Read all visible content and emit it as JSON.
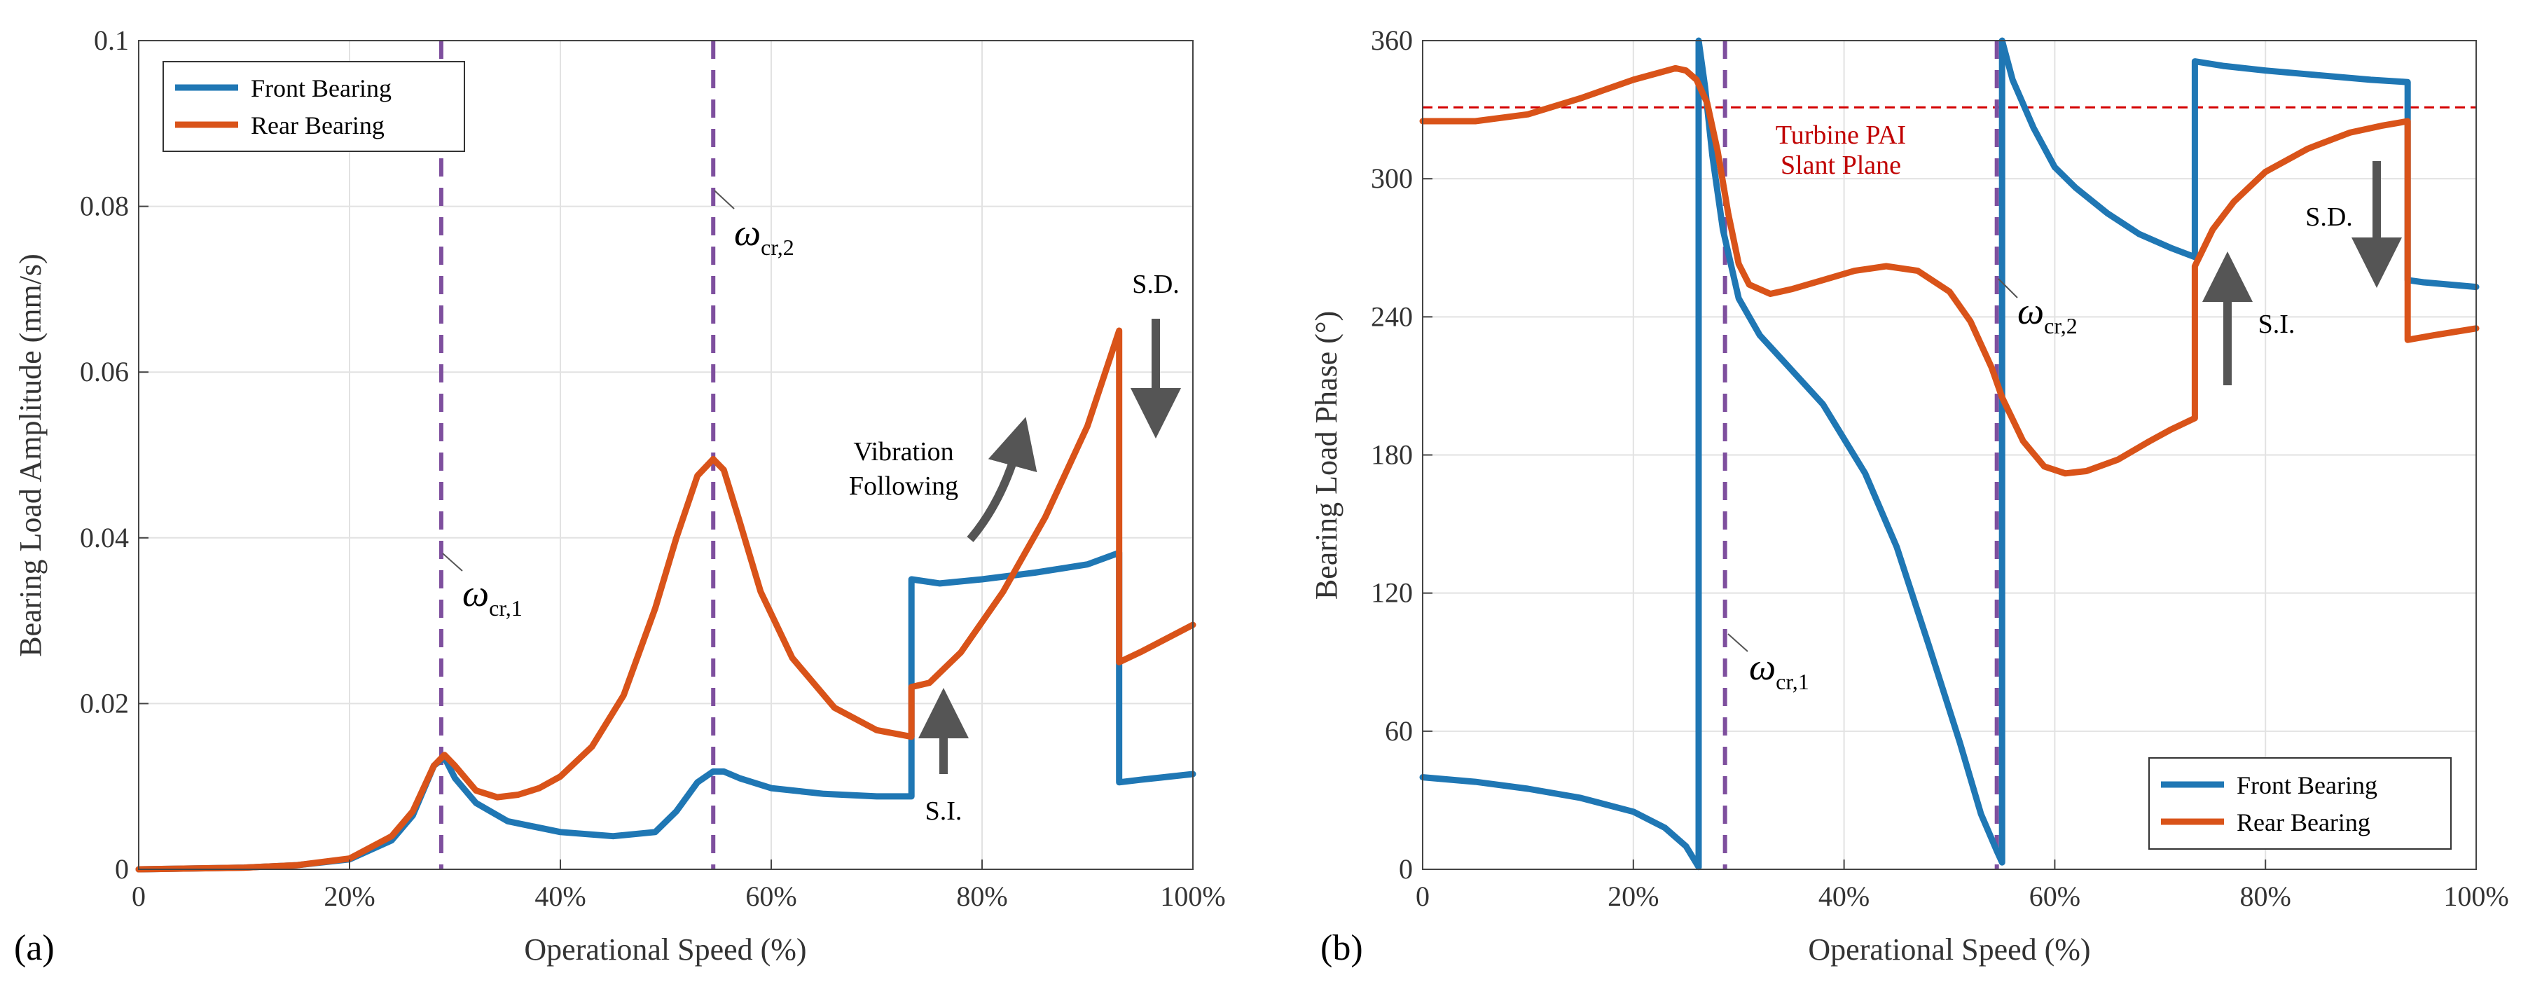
{
  "colors": {
    "front": "#1f77b4",
    "rear": "#d95319",
    "critical": "#7e4f9e",
    "slant": "#d40000",
    "arrow": "#555555",
    "grid": "#e2e2e2"
  },
  "chart_data": [
    {
      "type": "line",
      "panel_label": "(a)",
      "xlabel": "Operational Speed (%)",
      "ylabel": "Bearing Load Amplitude (mm/s)",
      "xlim": [
        0,
        100
      ],
      "ylim": [
        0,
        0.1
      ],
      "xticks": [
        0,
        20,
        40,
        60,
        80,
        100
      ],
      "xtick_labels": [
        "0",
        "20%",
        "40%",
        "60%",
        "80%",
        "100%"
      ],
      "yticks": [
        0,
        0.02,
        0.04,
        0.06,
        0.08,
        0.1
      ],
      "ytick_labels": [
        "0",
        "0.02",
        "0.04",
        "0.06",
        "0.08",
        "0.1"
      ],
      "grid": true,
      "legend_position": "top-left",
      "critical_speeds": [
        {
          "x": 28.7,
          "symbol": "ω",
          "subscript": "cr,1"
        },
        {
          "x": 54.5,
          "symbol": "ω",
          "subscript": "cr,2"
        }
      ],
      "annotations": {
        "vibration_following": [
          "Vibration",
          "Following"
        ],
        "si": "S.I.",
        "sd": "S.D."
      },
      "series": [
        {
          "name": "Front Bearing",
          "x": [
            0,
            10,
            15,
            20,
            24,
            26,
            28,
            29,
            30,
            32,
            35,
            40,
            45,
            49,
            51,
            53,
            54.5,
            55.5,
            57,
            60,
            65,
            70,
            73.3,
            73.3,
            76,
            80,
            85,
            90,
            93,
            93,
            95,
            100
          ],
          "y": [
            0,
            0.0002,
            0.0005,
            0.0012,
            0.0035,
            0.0065,
            0.0125,
            0.0135,
            0.011,
            0.008,
            0.0058,
            0.0045,
            0.004,
            0.0045,
            0.007,
            0.0105,
            0.0118,
            0.0118,
            0.011,
            0.0098,
            0.0091,
            0.0088,
            0.0088,
            0.035,
            0.0345,
            0.035,
            0.0358,
            0.0368,
            0.0382,
            0.0105,
            0.0108,
            0.0115
          ]
        },
        {
          "name": "Rear Bearing",
          "x": [
            0,
            10,
            15,
            20,
            24,
            26,
            28,
            29,
            30,
            32,
            34,
            36,
            38,
            40,
            43,
            46,
            49,
            51,
            53,
            54.5,
            55.5,
            57,
            59,
            62,
            66,
            70,
            73.3,
            73.3,
            75,
            78,
            82,
            86,
            90,
            93,
            93,
            95,
            100
          ],
          "y": [
            0,
            0.0002,
            0.0005,
            0.0013,
            0.004,
            0.007,
            0.0125,
            0.0138,
            0.0125,
            0.0095,
            0.0087,
            0.009,
            0.0098,
            0.0112,
            0.0148,
            0.021,
            0.0315,
            0.04,
            0.0475,
            0.0495,
            0.0482,
            0.042,
            0.0335,
            0.0255,
            0.0195,
            0.0168,
            0.016,
            0.022,
            0.0225,
            0.0262,
            0.0335,
            0.0425,
            0.0535,
            0.065,
            0.025,
            0.0262,
            0.0295
          ]
        }
      ]
    },
    {
      "type": "line",
      "panel_label": "(b)",
      "xlabel": "Operational Speed (%)",
      "ylabel": "Bearing Load Phase (°)",
      "xlim": [
        0,
        100
      ],
      "ylim": [
        0,
        360
      ],
      "xticks": [
        0,
        20,
        40,
        60,
        80,
        100
      ],
      "xtick_labels": [
        "0",
        "20%",
        "40%",
        "60%",
        "80%",
        "100%"
      ],
      "yticks": [
        0,
        60,
        120,
        180,
        240,
        300,
        360
      ],
      "ytick_labels": [
        "0",
        "60",
        "120",
        "180",
        "240",
        "300",
        "360"
      ],
      "grid": true,
      "legend_position": "bottom-right",
      "critical_speeds": [
        {
          "x": 28.7,
          "symbol": "ω",
          "subscript": "cr,1"
        },
        {
          "x": 54.5,
          "symbol": "ω",
          "subscript": "cr,2"
        }
      ],
      "reference_line": {
        "y": 331,
        "label": [
          "Turbine PAI",
          "Slant Plane"
        ]
      },
      "annotations": {
        "si": "S.I.",
        "sd": "S.D."
      },
      "series": [
        {
          "name": "Front Bearing",
          "x": [
            0,
            5,
            10,
            15,
            20,
            23,
            25,
            26.2,
            26.2,
            26.8,
            27.5,
            28.5,
            30,
            32,
            35,
            38,
            42,
            45,
            48,
            51,
            53,
            54.5,
            55,
            55,
            56,
            58,
            60,
            62,
            65,
            68,
            71,
            73.3,
            73.3,
            76,
            80,
            85,
            90,
            93.5,
            93.5,
            95,
            100
          ],
          "y": [
            40,
            38,
            35,
            31,
            25,
            18,
            10,
            1,
            360,
            340,
            310,
            278,
            248,
            232,
            217,
            202,
            172,
            140,
            98,
            55,
            24,
            8,
            3,
            360,
            343,
            322,
            305,
            296,
            285,
            276,
            270,
            266,
            351,
            349,
            347,
            345,
            343,
            342,
            256,
            255,
            253
          ]
        },
        {
          "name": "Rear Bearing",
          "x": [
            0,
            5,
            10,
            15,
            20,
            24,
            25,
            26,
            27,
            28,
            29,
            30,
            31,
            33,
            35,
            38,
            41,
            44,
            47,
            50,
            52,
            54,
            55,
            57,
            59,
            61,
            63,
            66,
            69,
            71,
            73.3,
            73.3,
            75,
            77,
            80,
            84,
            88,
            91,
            93.5,
            93.5,
            96,
            100
          ],
          "y": [
            325,
            325,
            328,
            335,
            343,
            348,
            347,
            343,
            333,
            312,
            285,
            263,
            254,
            250,
            252,
            256,
            260,
            262,
            260,
            251,
            238,
            218,
            205,
            186,
            175,
            172,
            173,
            178,
            186,
            191,
            196,
            262,
            278,
            290,
            303,
            313,
            320,
            323,
            325,
            230,
            232,
            235
          ]
        }
      ]
    }
  ]
}
